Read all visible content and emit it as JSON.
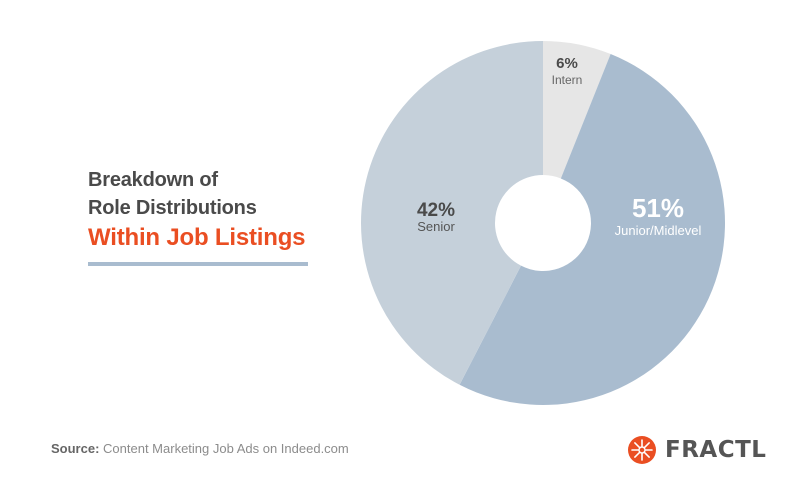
{
  "title": {
    "line1": "Breakdown of",
    "line2": "Role Distributions",
    "line3": "Within Job Listings"
  },
  "source": {
    "label": "Source:",
    "text": "Content Marketing Job Ads on Indeed.com"
  },
  "brand": {
    "name": "FRACTL",
    "icon": "sunburst-logo-icon",
    "color": "#ea4e22"
  },
  "chart_data": {
    "type": "pie",
    "subtype": "donut",
    "slices": [
      {
        "label": "Intern",
        "value": 6,
        "value_label": "6%",
        "color": "#e6e6e6"
      },
      {
        "label": "Junior/Midlevel",
        "value": 51,
        "value_label": "51%",
        "color": "#a9bccf"
      },
      {
        "label": "Senior",
        "value": 42,
        "value_label": "42%",
        "color": "#c5d0da"
      }
    ],
    "legend": "none"
  }
}
